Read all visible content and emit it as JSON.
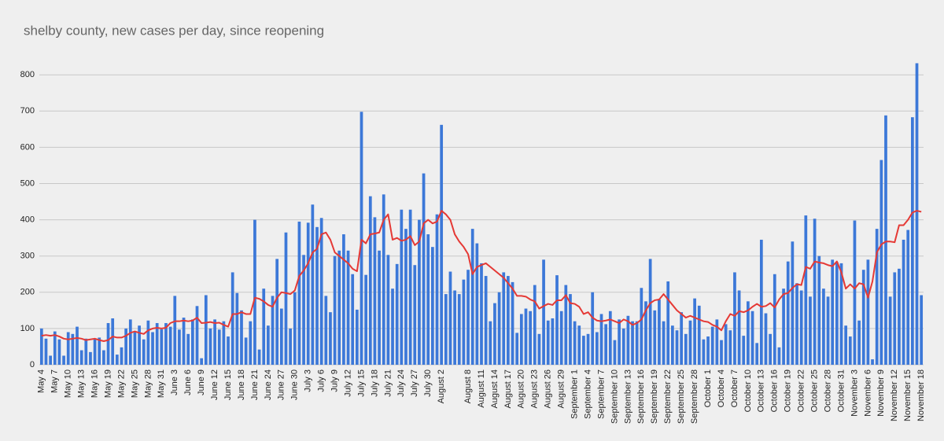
{
  "chart_data": {
    "type": "bar",
    "title": "shelby county, new cases per day, since reopening",
    "categories": [
      "May 4",
      null,
      null,
      "May 7",
      null,
      null,
      "May 10",
      null,
      null,
      "May 13",
      null,
      null,
      "May 16",
      null,
      null,
      "May 19",
      null,
      null,
      "May 22",
      null,
      null,
      "May 25",
      null,
      null,
      "May 28",
      null,
      null,
      "May 31",
      null,
      null,
      "June 3",
      null,
      null,
      "June 6",
      null,
      null,
      "June 9",
      null,
      null,
      "June 12",
      null,
      null,
      "June 15",
      null,
      null,
      "June 18",
      null,
      null,
      "June 21",
      null,
      null,
      "June 24",
      null,
      null,
      "June 27",
      null,
      null,
      "June 30",
      null,
      null,
      "July 3",
      null,
      null,
      "July 6",
      null,
      null,
      "July 9",
      null,
      null,
      "July 12",
      null,
      null,
      "July 15",
      null,
      null,
      "July 18",
      null,
      null,
      "July 21",
      null,
      null,
      "July 24",
      null,
      null,
      "July 27",
      null,
      null,
      "July 30",
      null,
      null,
      "August 2",
      null,
      null,
      null,
      null,
      null,
      "August 8",
      null,
      null,
      "August 11",
      null,
      null,
      "August 14",
      null,
      null,
      "August 17",
      null,
      null,
      "August 20",
      null,
      null,
      "August 23",
      null,
      null,
      "August 26",
      null,
      null,
      "August 29",
      null,
      null,
      "September 1",
      null,
      null,
      "September 4",
      null,
      null,
      "September 7",
      null,
      null,
      "September 10",
      null,
      null,
      "September 13",
      null,
      null,
      "September 16",
      null,
      null,
      "September 19",
      null,
      null,
      "September 22",
      null,
      null,
      "September 25",
      null,
      null,
      "September 28",
      null,
      null,
      "October 1",
      null,
      null,
      "October 4",
      null,
      null,
      "October 7",
      null,
      null,
      "October 10",
      null,
      null,
      "October 13",
      null,
      null,
      "October 16",
      null,
      null,
      "October 19",
      null,
      null,
      "October 22",
      null,
      null,
      "October 25",
      null,
      null,
      "October 28",
      null,
      null,
      "October 31",
      null,
      null,
      "November 3",
      null,
      null,
      "November 6",
      null,
      null,
      "November 9",
      null,
      null,
      "November 12",
      null,
      null,
      "November 15",
      null,
      null,
      "November 18"
    ],
    "series": [
      {
        "type": "bar",
        "color": "#3c78d8",
        "values": [
          100,
          72,
          25,
          92,
          70,
          25,
          90,
          85,
          105,
          40,
          72,
          35,
          72,
          75,
          40,
          115,
          128,
          28,
          48,
          100,
          125,
          90,
          108,
          70,
          122,
          90,
          115,
          98,
          115,
          105,
          190,
          97,
          130,
          85,
          125,
          162,
          18,
          192,
          100,
          125,
          97,
          120,
          78,
          255,
          198,
          150,
          75,
          120,
          400,
          42,
          210,
          108,
          190,
          292,
          155,
          365,
          100,
          200,
          395,
          303,
          392,
          442,
          380,
          405,
          190,
          145,
          300,
          315,
          360,
          315,
          250,
          152,
          698,
          248,
          465,
          407,
          315,
          470,
          303,
          210,
          278,
          428,
          375,
          428,
          275,
          400,
          528,
          360,
          325,
          415,
          662,
          195,
          257,
          205,
          195,
          235,
          262,
          375,
          335,
          280,
          245,
          120,
          170,
          200,
          255,
          245,
          228,
          88,
          140,
          155,
          148,
          220,
          85,
          290,
          122,
          128,
          247,
          148,
          220,
          195,
          120,
          108,
          80,
          85,
          200,
          90,
          140,
          112,
          148,
          68,
          125,
          100,
          135,
          120,
          120,
          212,
          175,
          292,
          150,
          180,
          120,
          230,
          108,
          95,
          145,
          85,
          122,
          183,
          163,
          70,
          78,
          105,
          125,
          68,
          112,
          95,
          255,
          205,
          80,
          175,
          148,
          60,
          345,
          142,
          85,
          250,
          48,
          210,
          285,
          340,
          225,
          205,
          412,
          188,
          403,
          300,
          210,
          188,
          290,
          283,
          280,
          108,
          78,
          398,
          122,
          262,
          290,
          15,
          375,
          565,
          688,
          188,
          255,
          265,
          345,
          372,
          683,
          832,
          192
        ]
      },
      {
        "type": "line",
        "color": "#e53935",
        "values": [
          80,
          82,
          80,
          82,
          78,
          72,
          70,
          72,
          74,
          72,
          68,
          70,
          72,
          68,
          65,
          68,
          78,
          75,
          75,
          80,
          88,
          92,
          88,
          85,
          95,
          100,
          102,
          100,
          102,
          115,
          120,
          120,
          122,
          120,
          122,
          130,
          115,
          116,
          118,
          115,
          116,
          110,
          105,
          140,
          140,
          145,
          140,
          140,
          185,
          182,
          175,
          165,
          160,
          185,
          200,
          198,
          195,
          205,
          245,
          260,
          280,
          310,
          320,
          360,
          365,
          345,
          310,
          300,
          290,
          280,
          265,
          258,
          345,
          335,
          360,
          362,
          365,
          400,
          415,
          345,
          350,
          342,
          345,
          355,
          330,
          340,
          390,
          400,
          390,
          395,
          425,
          415,
          400,
          360,
          340,
          325,
          305,
          250,
          270,
          275,
          280,
          270,
          260,
          250,
          240,
          225,
          210,
          190,
          190,
          188,
          180,
          175,
          155,
          162,
          168,
          165,
          178,
          178,
          192,
          170,
          168,
          160,
          140,
          145,
          130,
          122,
          120,
          122,
          125,
          120,
          115,
          125,
          120,
          110,
          115,
          125,
          150,
          170,
          178,
          180,
          195,
          180,
          165,
          150,
          140,
          130,
          135,
          130,
          125,
          120,
          118,
          110,
          105,
          95,
          120,
          140,
          135,
          148,
          145,
          150,
          160,
          168,
          160,
          162,
          170,
          158,
          180,
          195,
          198,
          212,
          222,
          220,
          270,
          265,
          285,
          282,
          280,
          275,
          272,
          285,
          255,
          210,
          222,
          210,
          225,
          222,
          185,
          230,
          310,
          332,
          340,
          340,
          338,
          385,
          385,
          400,
          420,
          425,
          422
        ]
      }
    ],
    "ylim": [
      0,
      850
    ],
    "yticks": [
      0,
      100,
      200,
      300,
      400,
      500,
      600,
      700,
      800
    ],
    "grid": true
  }
}
